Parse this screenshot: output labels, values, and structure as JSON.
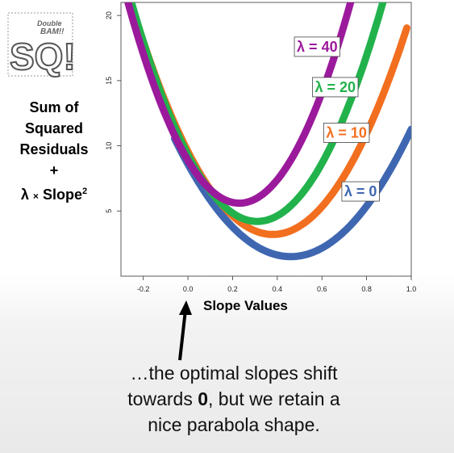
{
  "logo": {
    "line1": "Double",
    "line2": "BAM!!",
    "main": "SQ!"
  },
  "ylabel": {
    "line1": "Sum of",
    "line2": "Squared",
    "line3": "Residuals",
    "plus": "+",
    "lambda": "λ",
    "times": "×",
    "slope": "Slope",
    "exp": "2"
  },
  "caption": {
    "part1": "…the optimal slopes shift",
    "part2": "towards ",
    "bold": "0",
    "part3": ", but we retain a",
    "part4": "nice parabola shape."
  },
  "chart_data": {
    "type": "line",
    "xlabel": "Slope Values",
    "ylabel": "",
    "xlim": [
      -0.3,
      1.0
    ],
    "ylim": [
      0,
      21
    ],
    "xticks": [
      "-0.2",
      "0.0",
      "0.2",
      "0.4",
      "0.6",
      "0.8",
      "1.0"
    ],
    "yticks": [
      "5",
      "10",
      "15",
      "20"
    ],
    "series": [
      {
        "name": "λ = 0",
        "color": "#3f67b1",
        "vertex_x": 0.46,
        "min_y": 1.5,
        "curvature": 33.5,
        "x_start": -0.06,
        "x_end": 1.0
      },
      {
        "name": "λ = 10",
        "color": "#f26f1f",
        "vertex_x": 0.38,
        "min_y": 3.2,
        "curvature": 44,
        "x_start": -0.22,
        "x_end": 0.98
      },
      {
        "name": "λ = 20",
        "color": "#22b24c",
        "vertex_x": 0.31,
        "min_y": 4.2,
        "curvature": 53,
        "x_start": -0.26,
        "x_end": 0.88
      },
      {
        "name": "λ = 40",
        "color": "#9b1a9c",
        "vertex_x": 0.23,
        "min_y": 5.6,
        "curvature": 62,
        "x_start": -0.28,
        "x_end": 0.76
      }
    ]
  }
}
